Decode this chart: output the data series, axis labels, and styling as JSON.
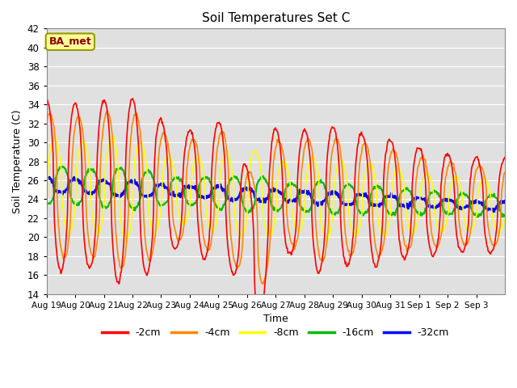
{
  "title": "Soil Temperatures Set C",
  "xlabel": "Time",
  "ylabel": "Soil Temperature (C)",
  "ylim": [
    14,
    42
  ],
  "yticks": [
    14,
    16,
    18,
    20,
    22,
    24,
    26,
    28,
    30,
    32,
    34,
    36,
    38,
    40,
    42
  ],
  "bg_color": "#e0e0e0",
  "grid_color": "#ffffff",
  "annotation_text": "BA_met",
  "annotation_bg": "#ffff99",
  "annotation_border": "#999900",
  "legend_entries": [
    "-2cm",
    "-4cm",
    "-8cm",
    "-16cm",
    "-32cm"
  ],
  "line_colors": [
    "#ff0000",
    "#ff8800",
    "#ffff00",
    "#00bb00",
    "#0000ff"
  ],
  "line_widths": [
    1.2,
    1.2,
    1.2,
    1.5,
    2.0
  ],
  "x_tick_labels": [
    "Aug 19",
    "Aug 20",
    "Aug 21",
    "Aug 22",
    "Aug 23",
    "Aug 24",
    "Aug 25",
    "Aug 26",
    "Aug 27",
    "Aug 28",
    "Aug 29",
    "Aug 30",
    "Aug 31",
    "Sep 1",
    "Sep 2",
    "Sep 3"
  ],
  "n_days": 16,
  "samples_per_day": 48
}
